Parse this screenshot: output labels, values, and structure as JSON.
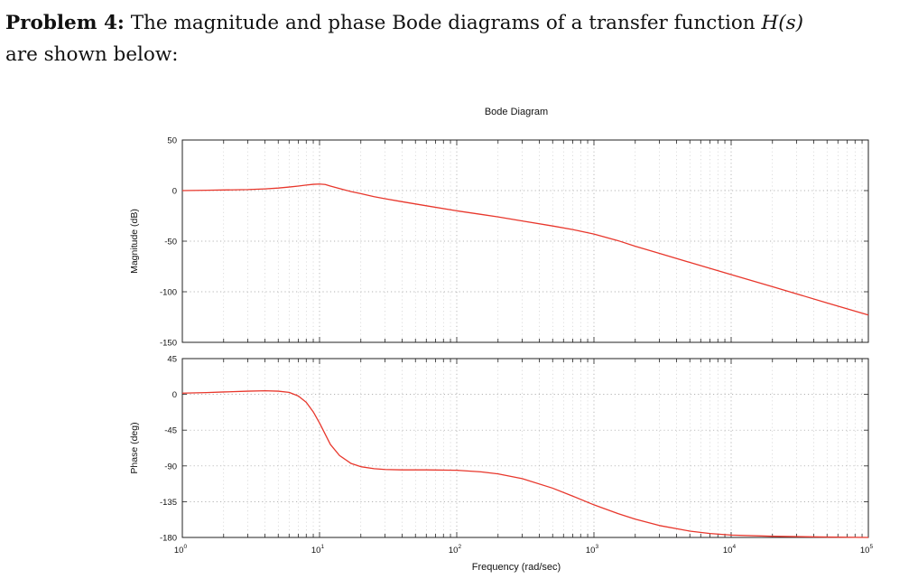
{
  "problem": {
    "label": "Problem 4:",
    "text_before": " The magnitude and phase Bode diagrams of a transfer function ",
    "math": "H(s)",
    "text_after": "are shown below:"
  },
  "chart_data": {
    "type": "line",
    "title": "Bode Diagram",
    "xlabel": "Frequency (rad/sec)",
    "xscale": "log",
    "xlim": [
      1,
      100000
    ],
    "x_ticks": [
      {
        "value": 1,
        "base": "10",
        "exp": "0"
      },
      {
        "value": 10,
        "base": "10",
        "exp": "1"
      },
      {
        "value": 100,
        "base": "10",
        "exp": "2"
      },
      {
        "value": 1000,
        "base": "10",
        "exp": "3"
      },
      {
        "value": 10000,
        "base": "10",
        "exp": "4"
      },
      {
        "value": 100000,
        "base": "10",
        "exp": "5"
      }
    ],
    "grid": true,
    "line_color": "#e8372c",
    "subplots": [
      {
        "name": "magnitude",
        "ylabel": "Magnitude (dB)",
        "ylim": [
          -150,
          50
        ],
        "yticks": [
          50,
          0,
          -50,
          -100,
          -150
        ],
        "x": [
          1,
          1.5,
          2,
          3,
          4,
          5,
          6,
          7,
          8,
          9,
          10,
          11,
          12,
          14,
          17,
          20,
          25,
          30,
          40,
          60,
          100,
          150,
          200,
          300,
          500,
          700,
          1000,
          1500,
          2000,
          3000,
          5000,
          10000,
          20000,
          50000,
          100000
        ],
        "y": [
          0,
          0.3,
          0.6,
          1,
          1.7,
          2.5,
          3.5,
          4.5,
          5.5,
          6.2,
          6.5,
          6,
          4.5,
          2,
          -1,
          -3,
          -6,
          -8,
          -11,
          -15,
          -20,
          -23.5,
          -26,
          -30,
          -35,
          -38.5,
          -43,
          -49.5,
          -55,
          -62,
          -71,
          -83,
          -95,
          -111,
          -123
        ]
      },
      {
        "name": "phase",
        "ylabel": "Phase (deg)",
        "ylim": [
          -180,
          45
        ],
        "yticks": [
          45,
          0,
          -45,
          -90,
          -135,
          -180
        ],
        "x": [
          1,
          1.5,
          2,
          3,
          4,
          5,
          6,
          7,
          8,
          9,
          10,
          12,
          14,
          17,
          20,
          25,
          30,
          40,
          60,
          100,
          150,
          200,
          300,
          500,
          700,
          1000,
          1500,
          2000,
          3000,
          5000,
          7000,
          10000,
          20000,
          50000,
          100000
        ],
        "y": [
          1.5,
          2.2,
          3,
          4,
          4.5,
          4,
          2.5,
          -2,
          -10,
          -22,
          -36,
          -63,
          -77,
          -87,
          -91,
          -93.5,
          -94.5,
          -95,
          -95,
          -95.5,
          -97.5,
          -100,
          -106,
          -118,
          -128,
          -139,
          -150,
          -157,
          -165,
          -172,
          -175,
          -177,
          -178.5,
          -179.5,
          -180
        ]
      }
    ]
  }
}
